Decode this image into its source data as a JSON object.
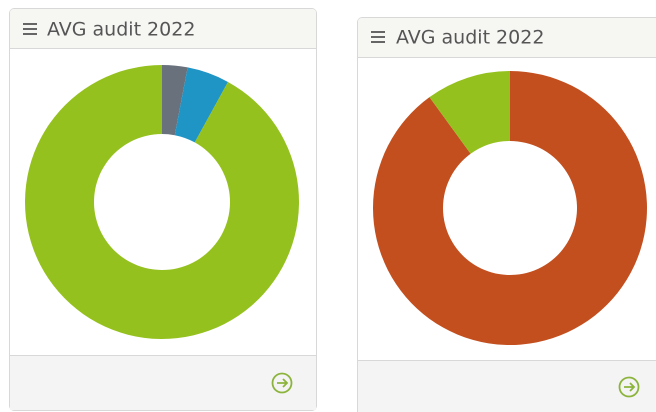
{
  "chart_data": [
    {
      "type": "pie",
      "title": "AVG audit 2022",
      "values": [
        3,
        5,
        92
      ],
      "colors": [
        "#69717d",
        "#1f95c6",
        "#95c11f"
      ]
    },
    {
      "type": "pie",
      "title": "AVG audit 2022",
      "values": [
        90,
        10
      ],
      "colors": [
        "#c34f1f",
        "#95c11f"
      ]
    }
  ]
}
